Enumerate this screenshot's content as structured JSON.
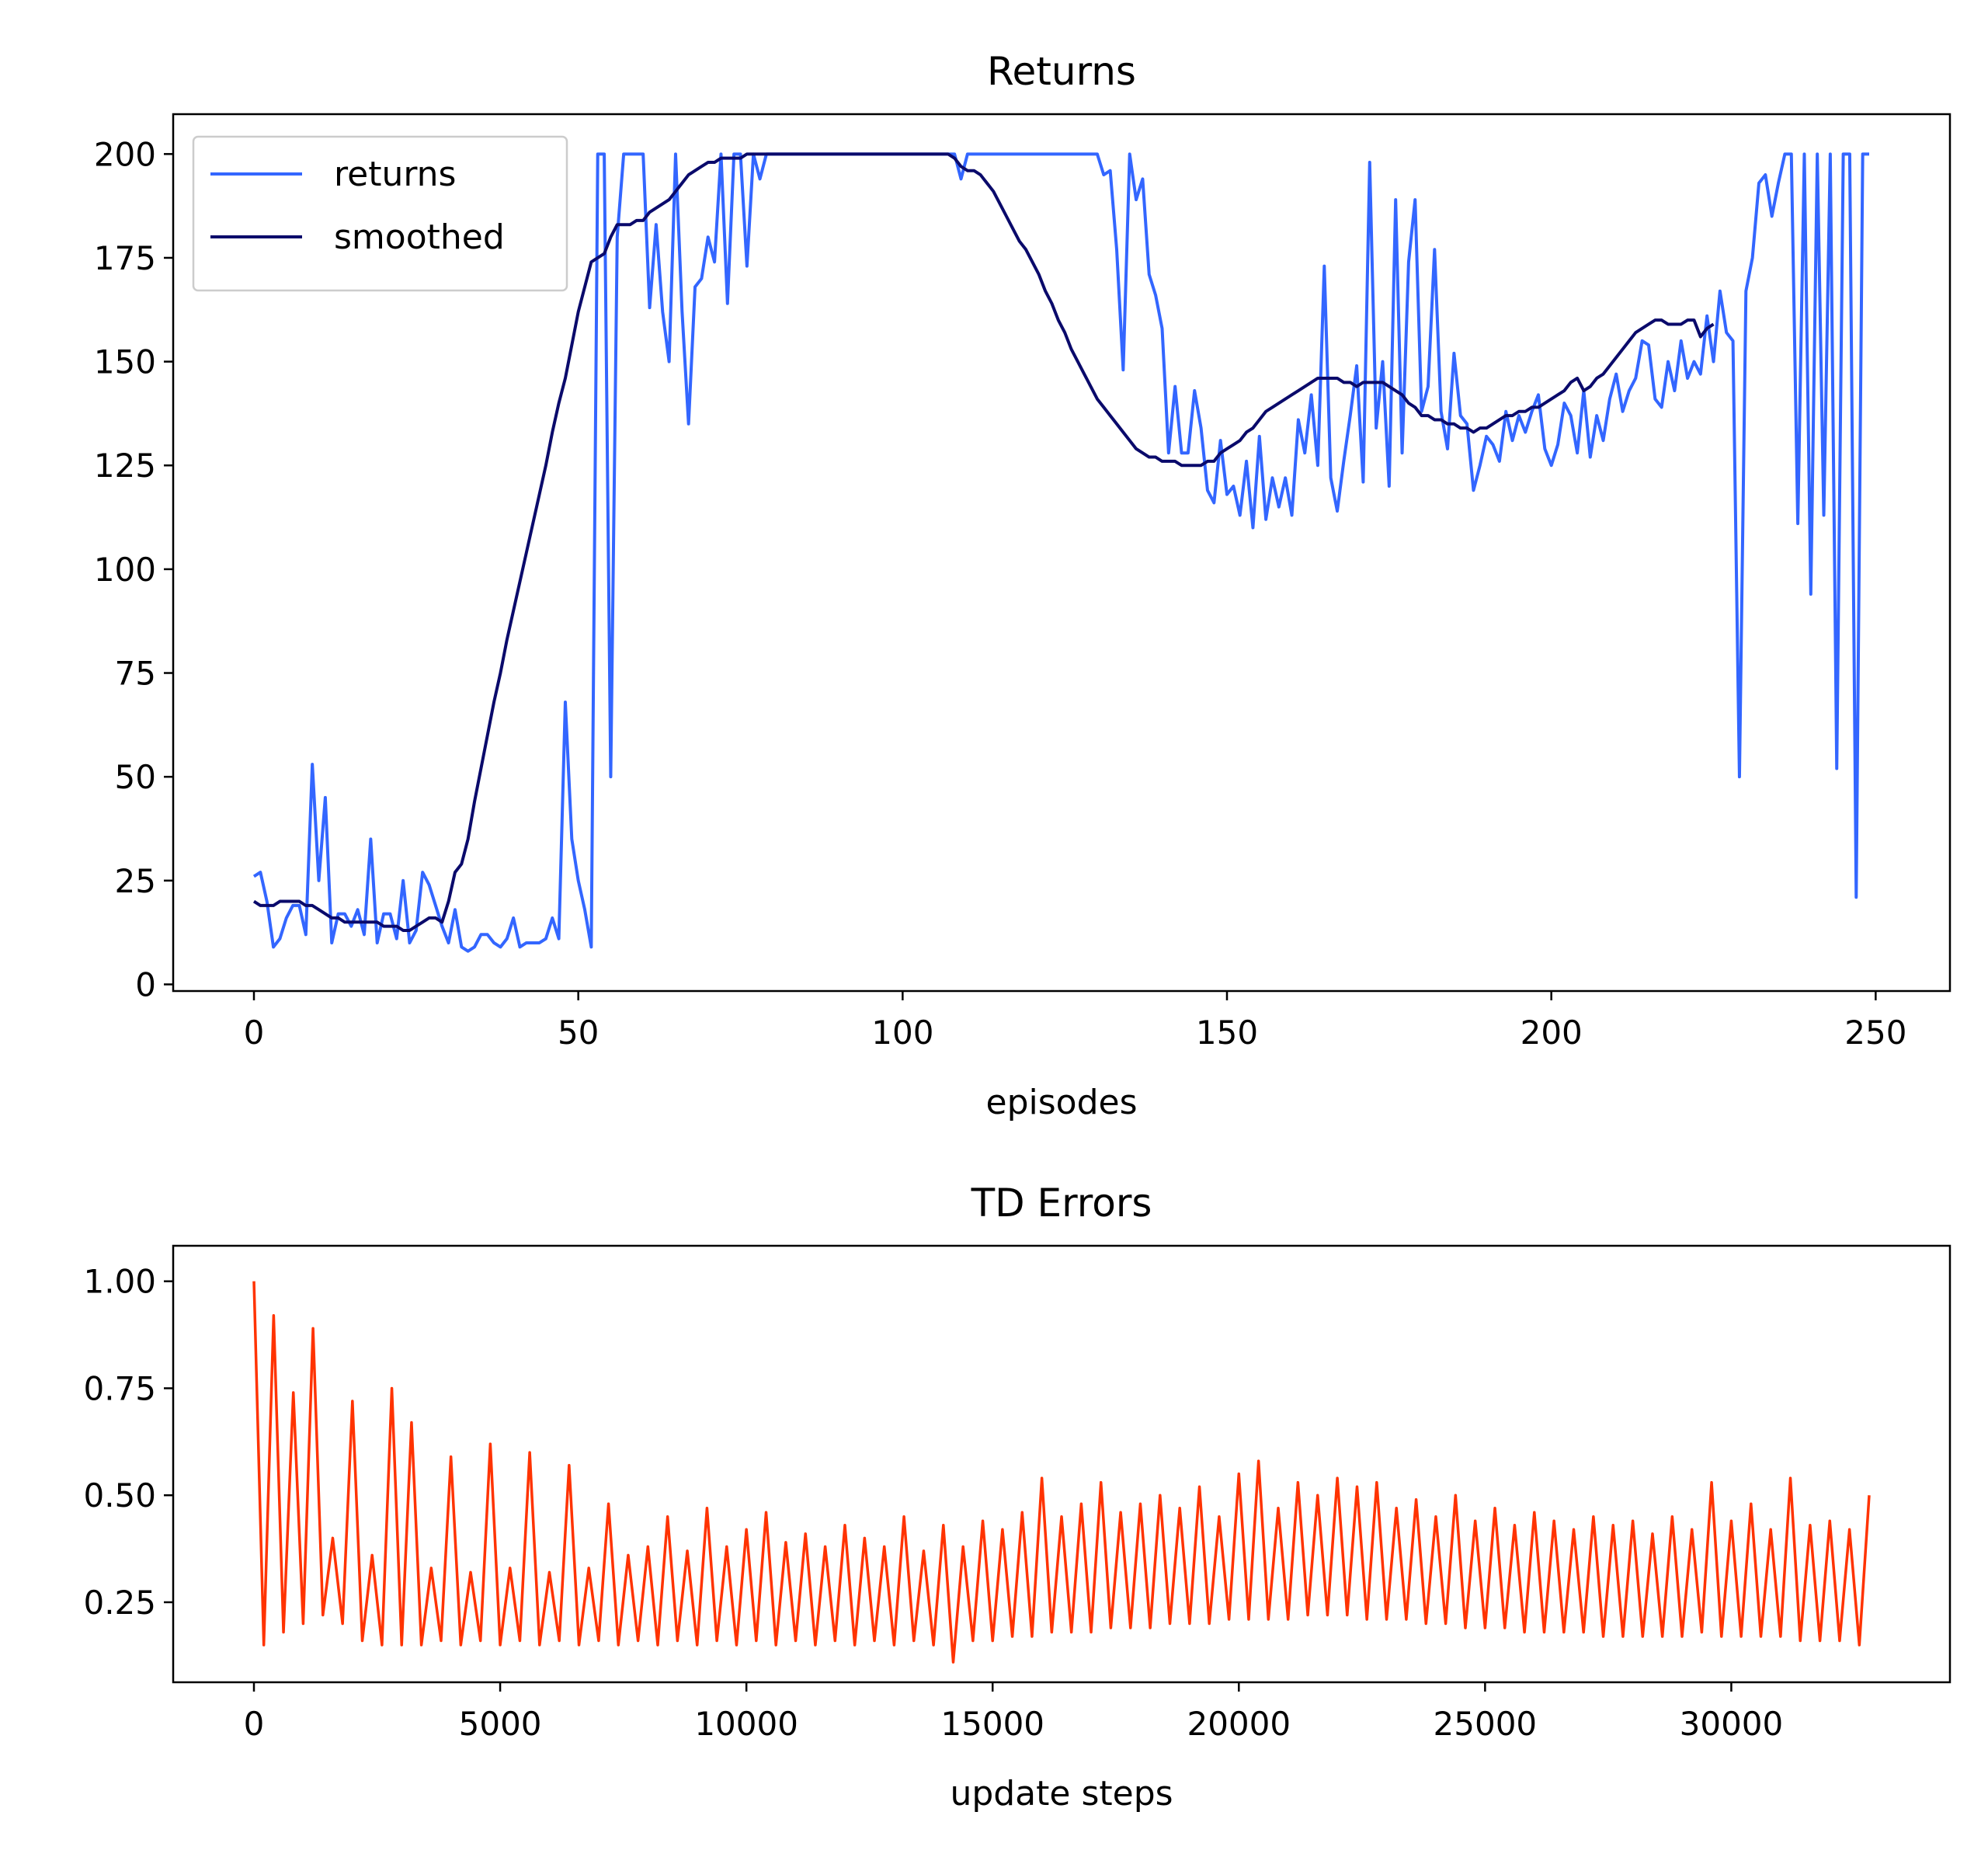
{
  "chart_data": [
    {
      "type": "line",
      "title": "Returns",
      "x_label": "episodes",
      "legend": "upper left",
      "xlim": [
        -12.45,
        261.45
      ],
      "ylim": [
        -1.6,
        209.6
      ],
      "xticks": [
        0,
        50,
        100,
        150,
        200,
        250
      ],
      "yticks": [
        0,
        25,
        50,
        75,
        100,
        125,
        150,
        175,
        200
      ],
      "x": [
        0,
        1,
        2,
        3,
        4,
        5,
        6,
        7,
        8,
        9,
        10,
        11,
        12,
        13,
        14,
        15,
        16,
        17,
        18,
        19,
        20,
        21,
        22,
        23,
        24,
        25,
        26,
        27,
        28,
        29,
        30,
        31,
        32,
        33,
        34,
        35,
        36,
        37,
        38,
        39,
        40,
        41,
        42,
        43,
        44,
        45,
        46,
        47,
        48,
        49,
        50,
        51,
        52,
        53,
        54,
        55,
        56,
        57,
        58,
        59,
        60,
        61,
        62,
        63,
        64,
        65,
        66,
        67,
        68,
        69,
        70,
        71,
        72,
        73,
        74,
        75,
        76,
        77,
        78,
        79,
        80,
        81,
        82,
        83,
        84,
        85,
        86,
        87,
        88,
        89,
        90,
        91,
        92,
        93,
        94,
        95,
        96,
        97,
        98,
        99,
        100,
        101,
        102,
        103,
        104,
        105,
        106,
        107,
        108,
        109,
        110,
        111,
        112,
        113,
        114,
        115,
        116,
        117,
        118,
        119,
        120,
        121,
        122,
        123,
        124,
        125,
        126,
        127,
        128,
        129,
        130,
        131,
        132,
        133,
        134,
        135,
        136,
        137,
        138,
        139,
        140,
        141,
        142,
        143,
        144,
        145,
        146,
        147,
        148,
        149,
        150,
        151,
        152,
        153,
        154,
        155,
        156,
        157,
        158,
        159,
        160,
        161,
        162,
        163,
        164,
        165,
        166,
        167,
        168,
        169,
        170,
        171,
        172,
        173,
        174,
        175,
        176,
        177,
        178,
        179,
        180,
        181,
        182,
        183,
        184,
        185,
        186,
        187,
        188,
        189,
        190,
        191,
        192,
        193,
        194,
        195,
        196,
        197,
        198,
        199,
        200,
        201,
        202,
        203,
        204,
        205,
        206,
        207,
        208,
        209,
        210,
        211,
        212,
        213,
        214,
        215,
        216,
        217,
        218,
        219,
        220,
        221,
        222,
        223,
        224,
        225,
        226,
        227,
        228,
        229,
        230,
        231,
        232,
        233,
        234,
        235,
        236,
        237,
        238,
        239,
        240,
        241,
        242,
        243,
        244,
        245,
        246,
        247,
        248,
        249
      ],
      "series": [
        {
          "name": "returns",
          "color": "#3366ff",
          "values": [
            26,
            27,
            20,
            9,
            11,
            16,
            19,
            19,
            12,
            53,
            25,
            45,
            10,
            17,
            17,
            14,
            18,
            12,
            35,
            10,
            17,
            17,
            11,
            25,
            10,
            13,
            27,
            24,
            19,
            14,
            10,
            18,
            9,
            8,
            9,
            12,
            12,
            10,
            9,
            11,
            16,
            9,
            10,
            10,
            10,
            11,
            16,
            11,
            68,
            35,
            25,
            18,
            9,
            200,
            200,
            50,
            180,
            200,
            200,
            200,
            200,
            163,
            183,
            162,
            150,
            200,
            162,
            135,
            168,
            170,
            180,
            174,
            200,
            164,
            200,
            200,
            173,
            200,
            194,
            200,
            200,
            200,
            200,
            200,
            200,
            200,
            200,
            200,
            200,
            200,
            200,
            200,
            200,
            200,
            200,
            200,
            200,
            200,
            200,
            200,
            200,
            200,
            200,
            200,
            200,
            200,
            200,
            200,
            200,
            194,
            200,
            200,
            200,
            200,
            200,
            200,
            200,
            200,
            200,
            200,
            200,
            200,
            200,
            200,
            200,
            200,
            200,
            200,
            200,
            200,
            200,
            195,
            196,
            177,
            148,
            200,
            189,
            194,
            171,
            166,
            158,
            128,
            144,
            128,
            128,
            143,
            134,
            119,
            116,
            131,
            118,
            120,
            113,
            126,
            110,
            132,
            112,
            122,
            115,
            122,
            113,
            136,
            128,
            142,
            125,
            173,
            122,
            114,
            126,
            137,
            149,
            121,
            198,
            134,
            150,
            120,
            189,
            128,
            174,
            189,
            138,
            144,
            177,
            138,
            129,
            152,
            137,
            135,
            119,
            125,
            132,
            130,
            126,
            138,
            131,
            137,
            133,
            138,
            142,
            129,
            125,
            130,
            140,
            137,
            128,
            143,
            127,
            137,
            131,
            141,
            147,
            138,
            143,
            146,
            155,
            154,
            141,
            139,
            150,
            143,
            155,
            146,
            150,
            147,
            161,
            150,
            167,
            157,
            155,
            50,
            167,
            175,
            193,
            195,
            185,
            193,
            200,
            200,
            111,
            200,
            94,
            200,
            113,
            200,
            52,
            200,
            200,
            21,
            200,
            200
          ]
        },
        {
          "name": "smoothed",
          "color": "#0a0a6b",
          "values": [
            20,
            19,
            19,
            19,
            20,
            20,
            20,
            20,
            19,
            19,
            18,
            17,
            16,
            16,
            15,
            15,
            15,
            15,
            15,
            15,
            14,
            14,
            14,
            13,
            13,
            14,
            15,
            16,
            16,
            15,
            20,
            27,
            29,
            35,
            44,
            52,
            60,
            68,
            75,
            83,
            90,
            97,
            104,
            111,
            118,
            125,
            133,
            140,
            146,
            154,
            162,
            168,
            174,
            175,
            176,
            180,
            183,
            183,
            183,
            184,
            184,
            186,
            187,
            188,
            189,
            191,
            193,
            195,
            196,
            197,
            198,
            198,
            199,
            199,
            199,
            199,
            200,
            200,
            200,
            200,
            200,
            200,
            200,
            200,
            200,
            200,
            200,
            200,
            200,
            200,
            200,
            200,
            200,
            200,
            200,
            200,
            200,
            200,
            200,
            200,
            200,
            200,
            200,
            200,
            200,
            200,
            200,
            200,
            199,
            197,
            196,
            196,
            195,
            193,
            191,
            188,
            185,
            182,
            179,
            177,
            174,
            171,
            167,
            164,
            160,
            157,
            153,
            150,
            147,
            144,
            141,
            139,
            137,
            135,
            133,
            131,
            129,
            128,
            127,
            127,
            126,
            126,
            126,
            125,
            125,
            125,
            125,
            126,
            126,
            128,
            129,
            130,
            131,
            133,
            134,
            136,
            138,
            139,
            140,
            141,
            142,
            143,
            144,
            145,
            146,
            146,
            146,
            146,
            145,
            145,
            144,
            145,
            145,
            145,
            145,
            144,
            143,
            142,
            140,
            139,
            137,
            137,
            136,
            136,
            135,
            135,
            134,
            134,
            133,
            134,
            134,
            135,
            136,
            137,
            137,
            138,
            138,
            139,
            139,
            140,
            141,
            142,
            143,
            145,
            146,
            143,
            144,
            146,
            147,
            149,
            151,
            153,
            155,
            157,
            158,
            159,
            160,
            160,
            159,
            159,
            159,
            160,
            160,
            156,
            158,
            159,
            null,
            null,
            null,
            null,
            null,
            null,
            null,
            null,
            null,
            null,
            null,
            null,
            null,
            null,
            null,
            null,
            null,
            null,
            null,
            null,
            null,
            null,
            null,
            null
          ]
        }
      ]
    },
    {
      "type": "line",
      "title": "TD Errors",
      "x_label": "update steps",
      "xlim": [
        -1640,
        34440
      ],
      "ylim": [
        0.063,
        1.083
      ],
      "xticks": [
        0,
        5000,
        10000,
        15000,
        20000,
        25000,
        30000
      ],
      "yticks": [
        0.25,
        {
          "value": 0.5,
          "label": "0.50"
        },
        0.75,
        {
          "value": 1,
          "label": "1.00"
        }
      ],
      "x": [
        0,
        200,
        400,
        600,
        800,
        1000,
        1200,
        1400,
        1600,
        1800,
        2000,
        2200,
        2400,
        2600,
        2800,
        3000,
        3200,
        3400,
        3600,
        3800,
        4000,
        4200,
        4400,
        4600,
        4800,
        5000,
        5200,
        5400,
        5600,
        5800,
        6000,
        6200,
        6400,
        6600,
        6800,
        7000,
        7200,
        7400,
        7600,
        7800,
        8000,
        8200,
        8400,
        8600,
        8800,
        9000,
        9200,
        9400,
        9600,
        9800,
        10000,
        10200,
        10400,
        10600,
        10800,
        11000,
        11200,
        11400,
        11600,
        11800,
        12000,
        12200,
        12400,
        12600,
        12800,
        13000,
        13200,
        13400,
        13600,
        13800,
        14000,
        14200,
        14400,
        14600,
        14800,
        15000,
        15200,
        15400,
        15600,
        15800,
        16000,
        16200,
        16400,
        16600,
        16800,
        17000,
        17200,
        17400,
        17600,
        17800,
        18000,
        18200,
        18400,
        18600,
        18800,
        19000,
        19200,
        19400,
        19600,
        19800,
        20000,
        20200,
        20400,
        20600,
        20800,
        21000,
        21200,
        21400,
        21600,
        21800,
        22000,
        22200,
        22400,
        22600,
        22800,
        23000,
        23200,
        23400,
        23600,
        23800,
        24000,
        24200,
        24400,
        24600,
        24800,
        25000,
        25200,
        25400,
        25600,
        25800,
        26000,
        26200,
        26400,
        26600,
        26800,
        27000,
        27200,
        27400,
        27600,
        27800,
        28000,
        28200,
        28400,
        28600,
        28800,
        29000,
        29200,
        29400,
        29600,
        29800,
        30000,
        30200,
        30400,
        30600,
        30800,
        31000,
        31200,
        31400,
        31600,
        31800,
        32000,
        32200,
        32400,
        32600,
        32800
      ],
      "series": [
        {
          "color": "#ff3300",
          "values": [
            1.0,
            0.15,
            0.92,
            0.18,
            0.74,
            0.2,
            0.89,
            0.22,
            0.4,
            0.2,
            0.72,
            0.16,
            0.36,
            0.15,
            0.75,
            0.15,
            0.67,
            0.15,
            0.33,
            0.16,
            0.59,
            0.15,
            0.32,
            0.16,
            0.62,
            0.15,
            0.33,
            0.16,
            0.6,
            0.15,
            0.32,
            0.16,
            0.57,
            0.15,
            0.33,
            0.16,
            0.48,
            0.15,
            0.36,
            0.16,
            0.38,
            0.15,
            0.45,
            0.16,
            0.37,
            0.15,
            0.47,
            0.16,
            0.38,
            0.15,
            0.42,
            0.16,
            0.46,
            0.15,
            0.39,
            0.16,
            0.41,
            0.15,
            0.38,
            0.16,
            0.43,
            0.15,
            0.4,
            0.16,
            0.38,
            0.15,
            0.45,
            0.16,
            0.37,
            0.15,
            0.43,
            0.11,
            0.38,
            0.16,
            0.44,
            0.16,
            0.42,
            0.17,
            0.46,
            0.17,
            0.54,
            0.18,
            0.45,
            0.18,
            0.48,
            0.18,
            0.53,
            0.19,
            0.46,
            0.19,
            0.48,
            0.19,
            0.5,
            0.2,
            0.47,
            0.2,
            0.52,
            0.2,
            0.45,
            0.21,
            0.55,
            0.21,
            0.58,
            0.21,
            0.47,
            0.21,
            0.53,
            0.22,
            0.5,
            0.22,
            0.54,
            0.22,
            0.52,
            0.21,
            0.53,
            0.21,
            0.47,
            0.21,
            0.49,
            0.2,
            0.45,
            0.2,
            0.5,
            0.19,
            0.44,
            0.19,
            0.47,
            0.19,
            0.43,
            0.18,
            0.46,
            0.18,
            0.44,
            0.18,
            0.42,
            0.18,
            0.45,
            0.17,
            0.43,
            0.17,
            0.44,
            0.17,
            0.41,
            0.17,
            0.45,
            0.17,
            0.42,
            0.18,
            0.53,
            0.17,
            0.44,
            0.17,
            0.48,
            0.17,
            0.42,
            0.17,
            0.54,
            0.16,
            0.43,
            0.16,
            0.44,
            0.16,
            0.42,
            0.15,
            0.5
          ]
        }
      ]
    }
  ]
}
